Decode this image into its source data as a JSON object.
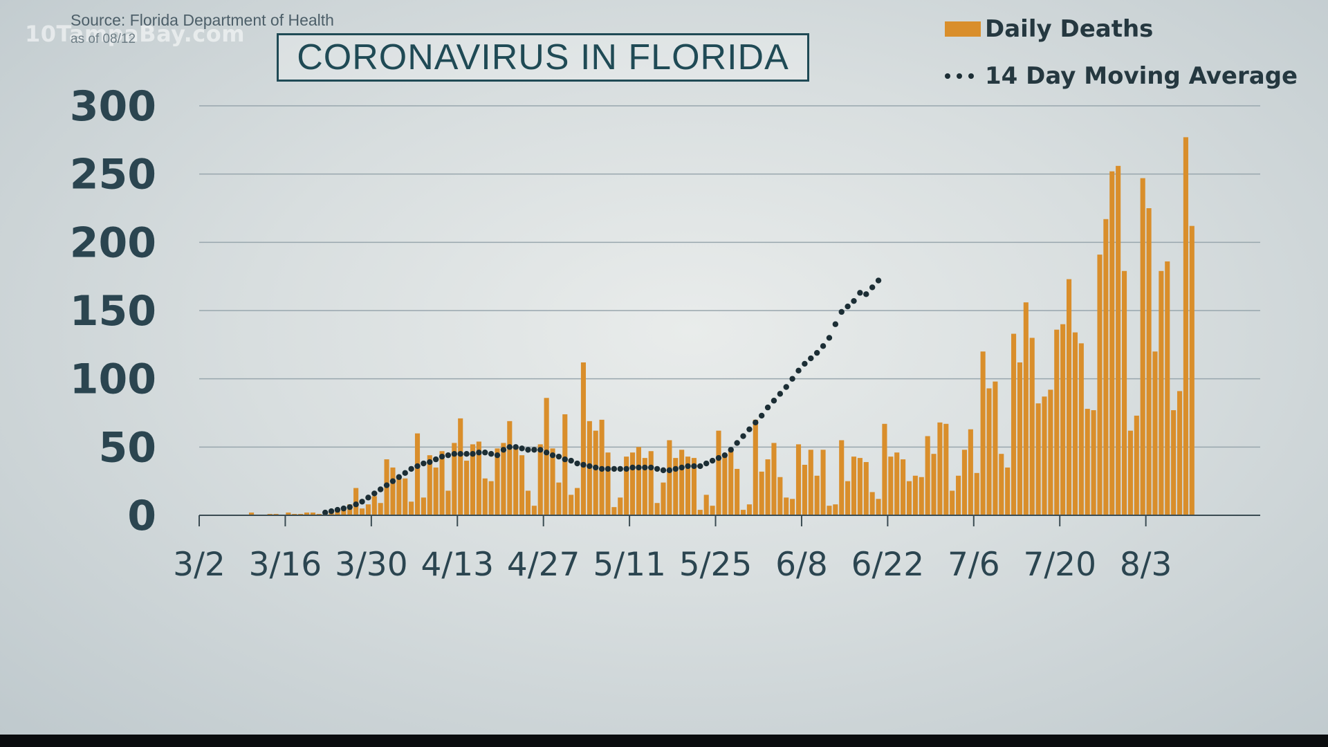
{
  "watermark": "10TampaBay.com",
  "source": "Source: Florida Department of Health",
  "as_of": "as of 08/12",
  "colors": {
    "bar": "#d98e2b",
    "average": "#1c2e35",
    "title": "#1f4a55",
    "axis_text": "#2b4550"
  },
  "chart_data": {
    "type": "bar",
    "title": "CORONAVIRUS IN FLORIDA",
    "xlabel": "",
    "ylabel": "",
    "ylim": [
      0,
      300
    ],
    "yticks": [
      0,
      50,
      100,
      150,
      200,
      250,
      300
    ],
    "x_tick_labels": [
      "3/2",
      "3/16",
      "3/30",
      "4/13",
      "4/27",
      "5/11",
      "5/25",
      "6/8",
      "6/22",
      "7/6",
      "7/20",
      "8/3"
    ],
    "x_tick_day_index": [
      0,
      14,
      28,
      42,
      56,
      70,
      84,
      98,
      112,
      126,
      140,
      154
    ],
    "grid": true,
    "legend_position": "top-right",
    "series": [
      {
        "name": "Daily Deaths",
        "kind": "bar",
        "values": [
          0,
          0,
          0,
          0,
          0,
          0,
          0,
          0,
          2,
          0,
          0,
          1,
          1,
          0,
          2,
          1,
          1,
          2,
          2,
          1,
          0,
          3,
          4,
          6,
          8,
          20,
          5,
          8,
          14,
          9,
          41,
          35,
          28,
          27,
          10,
          60,
          13,
          44,
          35,
          47,
          18,
          53,
          71,
          40,
          52,
          54,
          27,
          25,
          49,
          53,
          69,
          51,
          44,
          18,
          7,
          52,
          86,
          49,
          24,
          74,
          15,
          20,
          112,
          69,
          62,
          70,
          46,
          6,
          13,
          43,
          46,
          50,
          42,
          47,
          9,
          24,
          55,
          42,
          48,
          43,
          42,
          4,
          15,
          7,
          62,
          45,
          48,
          34,
          4,
          8,
          70,
          32,
          41,
          53,
          28,
          13,
          12,
          52,
          37,
          48,
          29,
          48,
          7,
          8,
          55,
          25,
          43,
          42,
          39,
          17,
          12,
          67,
          43,
          46,
          41,
          25,
          29,
          28,
          58,
          45,
          68,
          67,
          18,
          29,
          48,
          63,
          31,
          120,
          93,
          98,
          45,
          35,
          133,
          112,
          156,
          130,
          82,
          87,
          92,
          136,
          140,
          173,
          134,
          126,
          78,
          77,
          191,
          217,
          252,
          256,
          179,
          62,
          73,
          247,
          225,
          120,
          179,
          186,
          77,
          91,
          277,
          212
        ]
      },
      {
        "name": "14 Day Moving Average",
        "kind": "dotted-line",
        "start_day": 20,
        "values": [
          2,
          3,
          4,
          5,
          6,
          8,
          10,
          13,
          16,
          19,
          22,
          25,
          28,
          31,
          34,
          36,
          38,
          39,
          41,
          43,
          44,
          45,
          45,
          45,
          45,
          46,
          46,
          45,
          44,
          48,
          50,
          50,
          49,
          48,
          48,
          48,
          46,
          44,
          43,
          41,
          40,
          38,
          37,
          36,
          35,
          34,
          34,
          34,
          34,
          34,
          35,
          35,
          35,
          35,
          34,
          33,
          33,
          34,
          35,
          36,
          36,
          36,
          38,
          40,
          42,
          44,
          48,
          53,
          58,
          63,
          68,
          73,
          79,
          84,
          89,
          94,
          100,
          106,
          111,
          115,
          119,
          124,
          130,
          140,
          149,
          153,
          157,
          163,
          162,
          167,
          172
        ]
      }
    ]
  }
}
